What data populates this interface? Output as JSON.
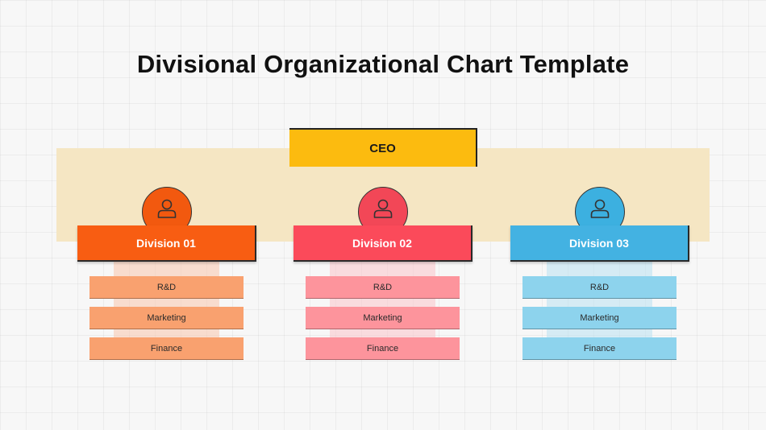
{
  "title": "Divisional Organizational Chart Template",
  "ceo": {
    "label": "CEO",
    "color": "#fcbb0f"
  },
  "band_color": "#f5e6c3",
  "divisions": [
    {
      "label": "Division 01",
      "icon": "person-icon",
      "header_color": "#f85d12",
      "avatar_color": "#f2590f",
      "item_color": "#f9a16f",
      "stem_color": "#f9c1a6",
      "items": [
        "R&D",
        "Marketing",
        "Finance"
      ]
    },
    {
      "label": "Division 02",
      "icon": "person-icon",
      "header_color": "#fb4a5a",
      "avatar_color": "#f24757",
      "item_color": "#fd949c",
      "stem_color": "#fbbfc5",
      "items": [
        "R&D",
        "Marketing",
        "Finance"
      ]
    },
    {
      "label": "Division 03",
      "icon": "person-icon",
      "header_color": "#43b2e2",
      "avatar_color": "#3cb0e0",
      "item_color": "#8dd3ed",
      "stem_color": "#b4e0f1",
      "items": [
        "R&D",
        "Marketing",
        "Finance"
      ]
    }
  ]
}
